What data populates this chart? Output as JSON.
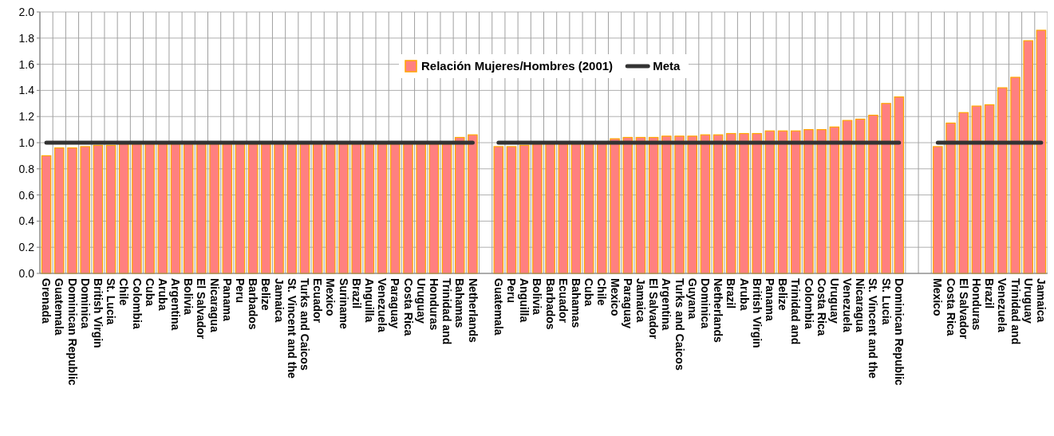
{
  "chart_data": {
    "type": "bar",
    "categories": [
      "Grenada",
      "Guatemala",
      "Dominican Republic",
      "Dominica",
      "British Virgin",
      "St. Lucia",
      "Chile",
      "Colombia",
      "Cuba",
      "Aruba",
      "Argentina",
      "Bolivia",
      "El Salvador",
      "Nicaragua",
      "Panama",
      "Peru",
      "Barbados",
      "Belize",
      "Jamaica",
      "St. Vincent and the",
      "Turks and Caicos",
      "Ecuador",
      "Mexico",
      "Suriname",
      "Brazil",
      "Anguilla",
      "Venezuela",
      "Paraguay",
      "Costa Rica",
      "Uruguay",
      "Honduras",
      "Trinidad and",
      "Bahamas",
      "Netherlands",
      null,
      "Guatemala",
      "Peru",
      "Anguilla",
      "Bolivia",
      "Barbados",
      "Ecuador",
      "Bahamas",
      "Cuba",
      "Chile",
      "Mexico",
      "Paraguay",
      "Jamaica",
      "El Salvador",
      "Argentina",
      "Turks and Caicos",
      "Guyana",
      "Dominica",
      "Netherlands",
      "Brazil",
      "Aruba",
      "British Virgin",
      "Panama",
      "Belize",
      "Trinidad and",
      "Colombia",
      "Costa Rica",
      "Uruguay",
      "Venezuela",
      "Nicaragua",
      "St. Vincent and the",
      "St. Lucia",
      "Dominican Republic",
      null,
      null,
      "Mexico",
      "Costa Rica",
      "El Salvador",
      "Honduras",
      "Brazil",
      "Venezuela",
      "Trinidad and",
      "Uruguay",
      "Jamaica"
    ],
    "series": [
      {
        "name": "Relación Mujeres/Hombres (2001)",
        "color": "#ff8080",
        "values": [
          0.9,
          0.96,
          0.96,
          0.97,
          0.98,
          0.98,
          0.99,
          0.99,
          0.99,
          0.99,
          0.99,
          0.99,
          0.99,
          0.99,
          0.99,
          0.99,
          0.99,
          0.99,
          0.99,
          0.99,
          0.99,
          0.99,
          0.99,
          0.99,
          0.99,
          0.99,
          0.99,
          0.99,
          0.99,
          0.99,
          0.99,
          0.99,
          1.04,
          1.06,
          null,
          0.97,
          0.97,
          0.98,
          0.99,
          0.99,
          0.99,
          0.99,
          1.0,
          1.0,
          1.03,
          1.04,
          1.04,
          1.04,
          1.05,
          1.05,
          1.05,
          1.06,
          1.06,
          1.07,
          1.07,
          1.07,
          1.09,
          1.09,
          1.09,
          1.1,
          1.1,
          1.12,
          1.17,
          1.18,
          1.21,
          1.3,
          1.35,
          null,
          null,
          0.97,
          1.15,
          1.23,
          1.28,
          1.29,
          1.42,
          1.5,
          1.78,
          1.86
        ]
      },
      {
        "name": "Meta",
        "type": "line",
        "color": "#333333",
        "values": [
          1,
          1,
          1,
          1,
          1,
          1,
          1,
          1,
          1,
          1,
          1,
          1,
          1,
          1,
          1,
          1,
          1,
          1,
          1,
          1,
          1,
          1,
          1,
          1,
          1,
          1,
          1,
          1,
          1,
          1,
          1,
          1,
          1,
          1,
          null,
          1,
          1,
          1,
          1,
          1,
          1,
          1,
          1,
          1,
          1,
          1,
          1,
          1,
          1,
          1,
          1,
          1,
          1,
          1,
          1,
          1,
          1,
          1,
          1,
          1,
          1,
          1,
          1,
          1,
          1,
          1,
          1,
          null,
          null,
          1,
          1,
          1,
          1,
          1,
          1,
          1,
          1,
          1
        ]
      }
    ],
    "ylim": [
      0,
      2
    ],
    "yticks": [
      {
        "value": 0,
        "label": "0.0"
      },
      0.2,
      0.4,
      0.6,
      0.8,
      {
        "value": 1,
        "label": "1.0"
      },
      1.2,
      1.4,
      1.6,
      1.8,
      {
        "value": 2,
        "label": "2.0"
      }
    ],
    "grid": true,
    "legend": "top",
    "marker": "none",
    "line_style": "solid"
  }
}
